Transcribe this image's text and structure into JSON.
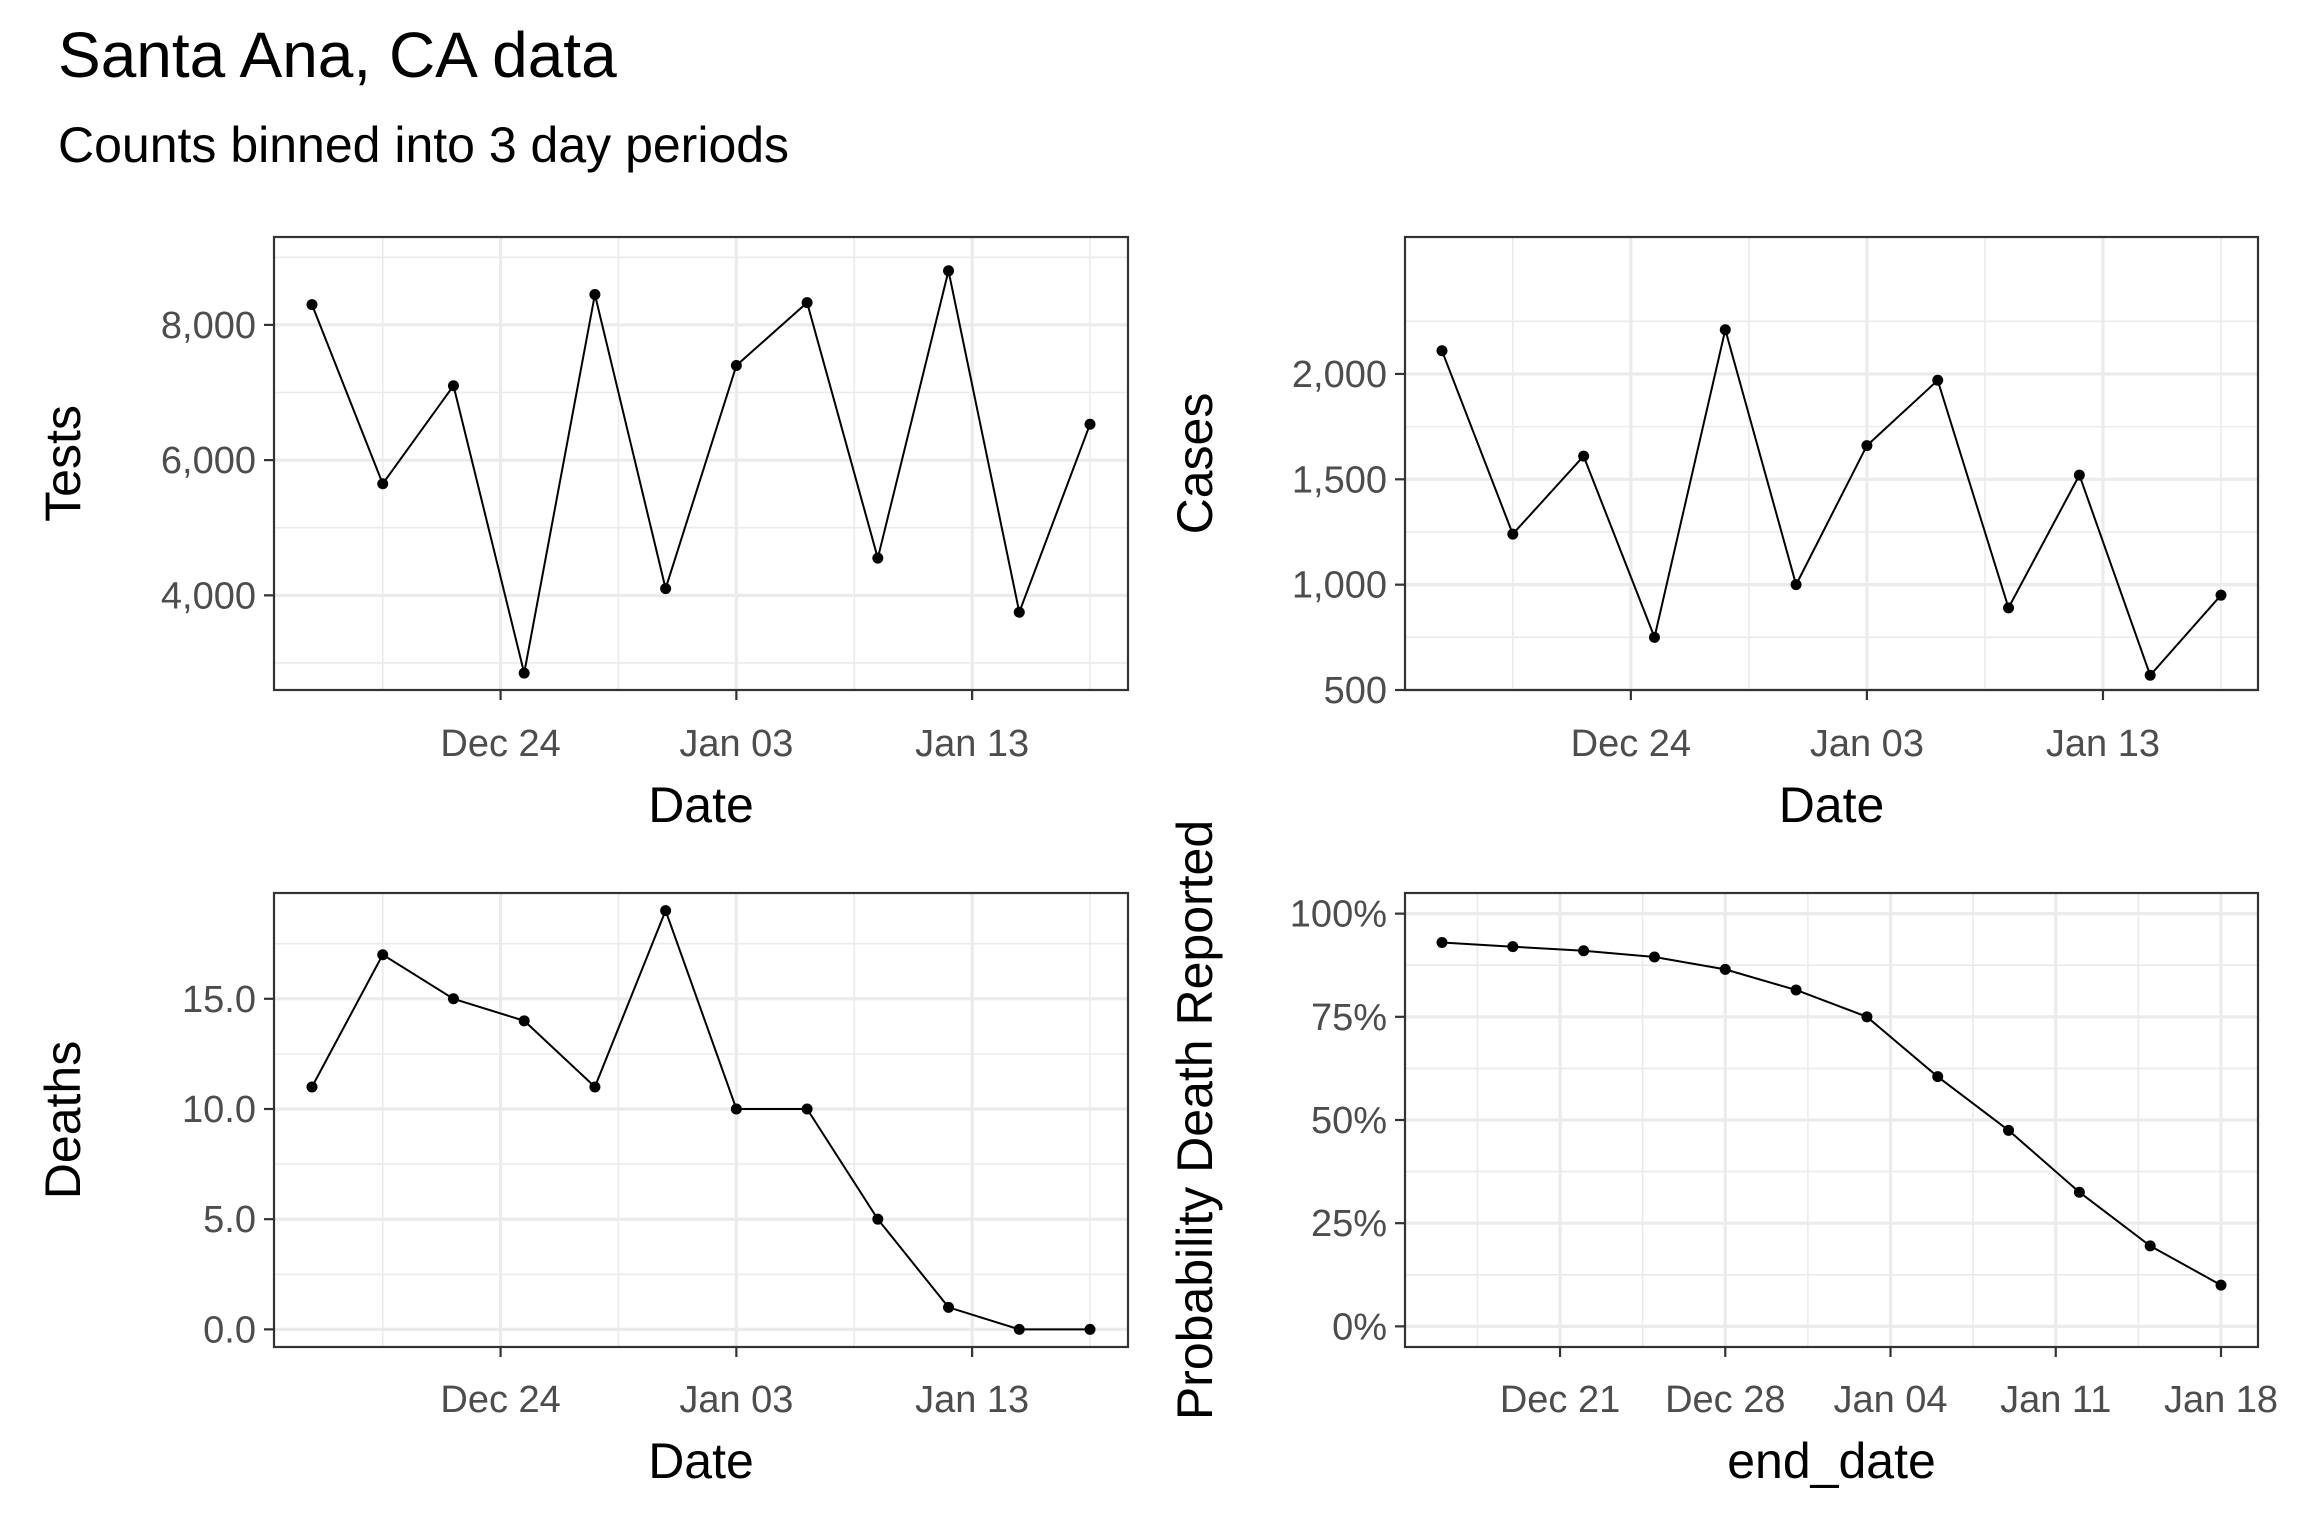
{
  "title": "Santa Ana, CA data",
  "subtitle": "Counts binned into 3 day periods",
  "chart_data": [
    {
      "type": "line",
      "xlabel": "Date",
      "ylabel": "Tests",
      "x": [
        "Dec 16",
        "Dec 19",
        "Dec 22",
        "Dec 25",
        "Dec 28",
        "Dec 31",
        "Jan 03",
        "Jan 06",
        "Jan 09",
        "Jan 12",
        "Jan 15",
        "Jan 18"
      ],
      "values": [
        8300,
        5650,
        7100,
        2850,
        8450,
        4100,
        7400,
        8330,
        4550,
        8800,
        3750,
        6530
      ],
      "ylim": [
        2600,
        9300
      ],
      "yticks": [
        4000,
        6000,
        8000
      ],
      "ytick_labels": [
        "4,000",
        "6,000",
        "8,000"
      ],
      "xticks": [
        "Dec 24",
        "Jan 03",
        "Jan 13"
      ],
      "grid": true
    },
    {
      "type": "line",
      "xlabel": "Date",
      "ylabel": "Cases",
      "x": [
        "Dec 16",
        "Dec 19",
        "Dec 22",
        "Dec 25",
        "Dec 28",
        "Dec 31",
        "Jan 03",
        "Jan 06",
        "Jan 09",
        "Jan 12",
        "Jan 15",
        "Jan 18"
      ],
      "values": [
        2110,
        1240,
        1610,
        750,
        2210,
        1000,
        1660,
        1970,
        890,
        1520,
        570,
        950
      ],
      "ylim": [
        500,
        2650
      ],
      "yticks": [
        500,
        1000,
        1500,
        2000
      ],
      "ytick_labels": [
        "500",
        "1,000",
        "1,500",
        "2,000"
      ],
      "xticks": [
        "Dec 24",
        "Jan 03",
        "Jan 13"
      ],
      "grid": true
    },
    {
      "type": "line",
      "xlabel": "Date",
      "ylabel": "Deaths",
      "x": [
        "Dec 16",
        "Dec 19",
        "Dec 22",
        "Dec 25",
        "Dec 28",
        "Dec 31",
        "Jan 03",
        "Jan 06",
        "Jan 09",
        "Jan 12",
        "Jan 15",
        "Jan 18"
      ],
      "values": [
        11,
        17,
        15,
        14,
        11,
        19,
        10,
        10,
        5,
        1,
        0,
        0
      ],
      "ylim": [
        -0.8,
        19.8
      ],
      "yticks": [
        0,
        5,
        10,
        15
      ],
      "ytick_labels": [
        "0.0",
        "5.0",
        "10.0",
        "15.0"
      ],
      "xticks": [
        "Dec 24",
        "Jan 03",
        "Jan 13"
      ],
      "grid": true
    },
    {
      "type": "line",
      "xlabel": "end_date",
      "ylabel": "Probability Death Reported",
      "x": [
        "Dec 16",
        "Dec 19",
        "Dec 22",
        "Dec 25",
        "Dec 28",
        "Dec 31",
        "Jan 03",
        "Jan 06",
        "Jan 09",
        "Jan 12",
        "Jan 15",
        "Jan 18"
      ],
      "values": [
        0.93,
        0.92,
        0.91,
        0.895,
        0.865,
        0.815,
        0.75,
        0.605,
        0.475,
        0.325,
        0.195,
        0.1
      ],
      "ylim": [
        -0.05,
        1.05
      ],
      "yticks": [
        0,
        0.25,
        0.5,
        0.75,
        1.0
      ],
      "ytick_labels": [
        "0%",
        "25%",
        "50%",
        "75%",
        "100%"
      ],
      "xticks": [
        "Dec 21",
        "Dec 28",
        "Jan 04",
        "Jan 11",
        "Jan 18"
      ],
      "grid": true
    }
  ]
}
